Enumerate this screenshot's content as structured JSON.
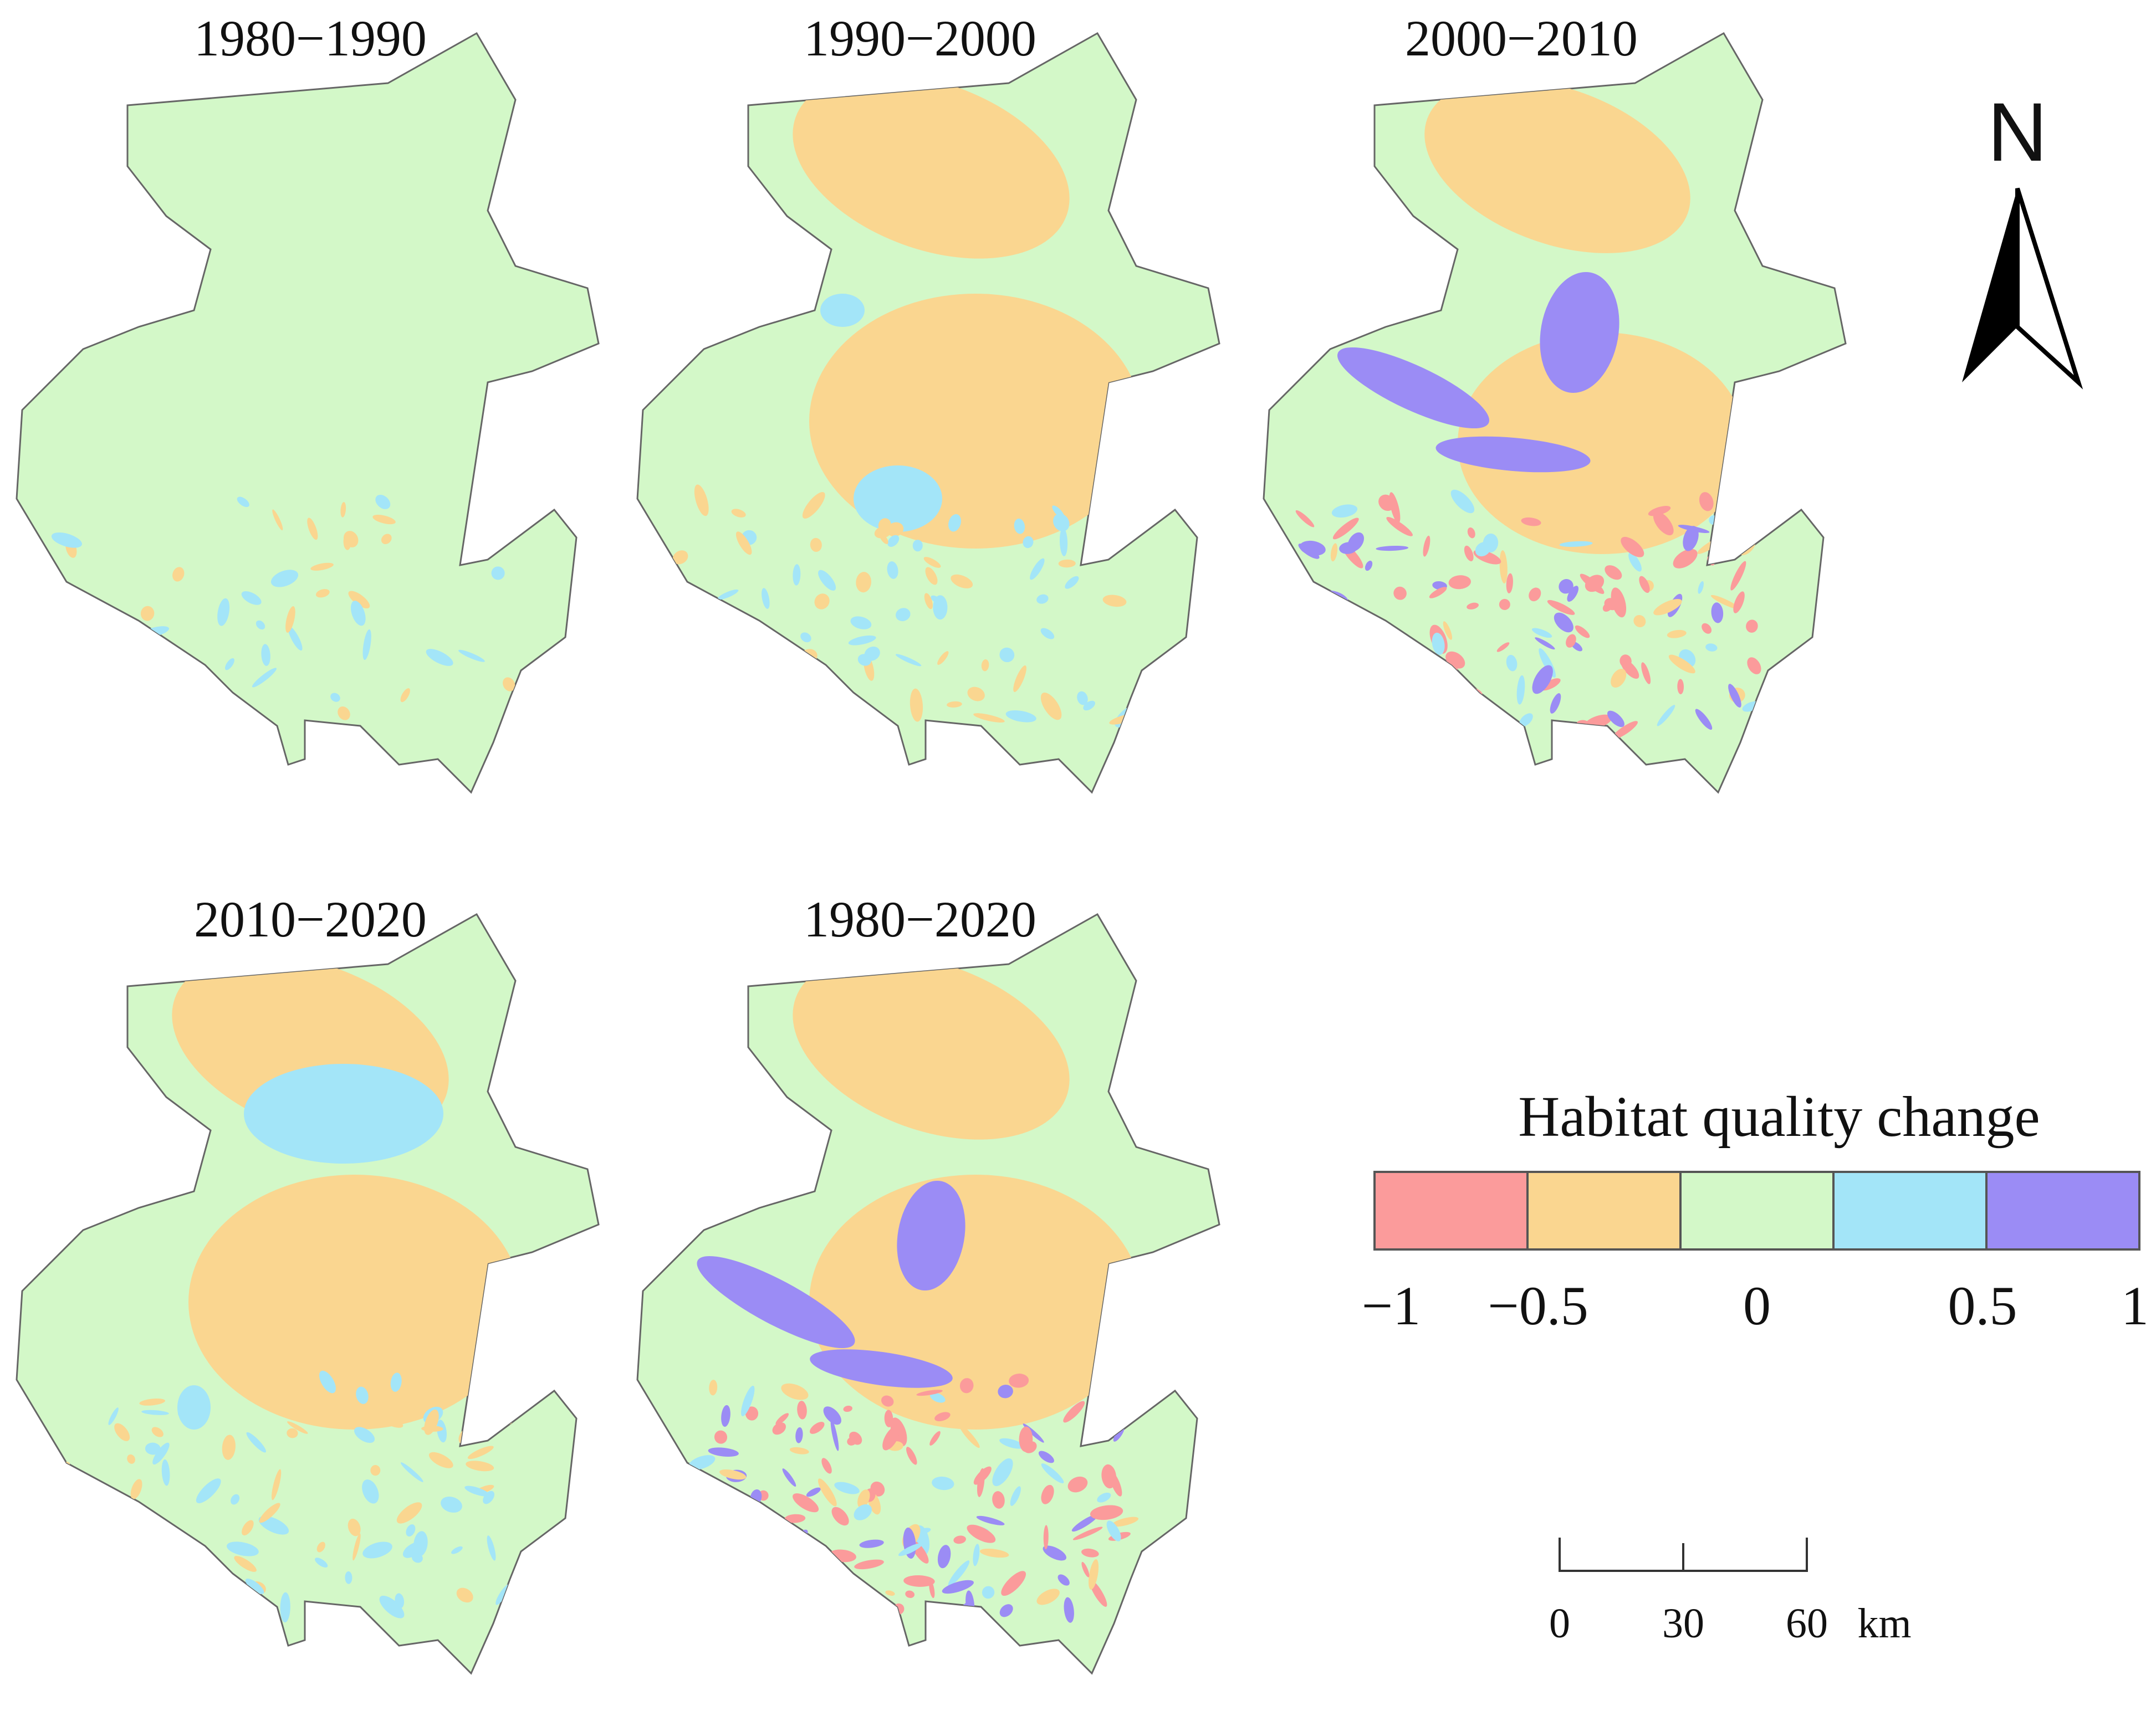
{
  "figure": {
    "panels": [
      {
        "title": "1980−1990",
        "pattern": "low"
      },
      {
        "title": "1990−2000",
        "pattern": "mid"
      },
      {
        "title": "2000−2010",
        "pattern": "high"
      },
      {
        "title": "2010−2020",
        "pattern": "neg"
      },
      {
        "title": "1980−2020",
        "pattern": "total"
      }
    ],
    "legend": {
      "title": "Habitat quality change",
      "classes": [
        {
          "color": "#fb9b9b"
        },
        {
          "color": "#fad690"
        },
        {
          "color": "#d3f8c8"
        },
        {
          "color": "#a3e5f8"
        },
        {
          "color": "#9b8cf5"
        }
      ],
      "tick_labels": [
        "−1",
        "−0.5",
        "0",
        "0.5",
        "1"
      ]
    },
    "north_arrow": {
      "label": "N"
    },
    "scale_bar": {
      "labels": [
        "0",
        "30",
        "60"
      ],
      "unit": "km"
    }
  }
}
